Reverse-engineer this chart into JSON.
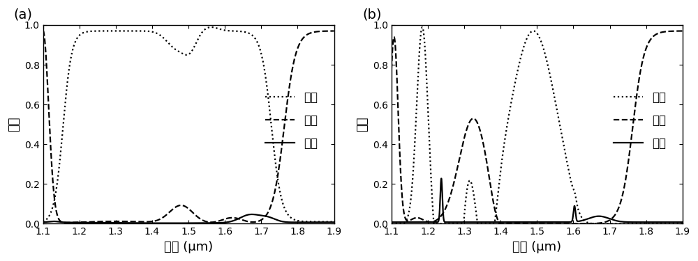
{
  "title_a": "(a)",
  "title_b": "(b)",
  "xlabel": "波长 (μm)",
  "ylabel": "强度",
  "legend_labels": [
    "反射",
    "透射",
    "吸收"
  ],
  "xlim": [
    1.1,
    1.9
  ],
  "ylim": [
    0.0,
    1.0
  ],
  "xticks": [
    1.1,
    1.2,
    1.3,
    1.4,
    1.5,
    1.6,
    1.7,
    1.8,
    1.9
  ],
  "yticks": [
    0.0,
    0.2,
    0.4,
    0.6,
    0.8,
    1.0
  ],
  "background_color": "#ffffff",
  "line_color": "#000000"
}
